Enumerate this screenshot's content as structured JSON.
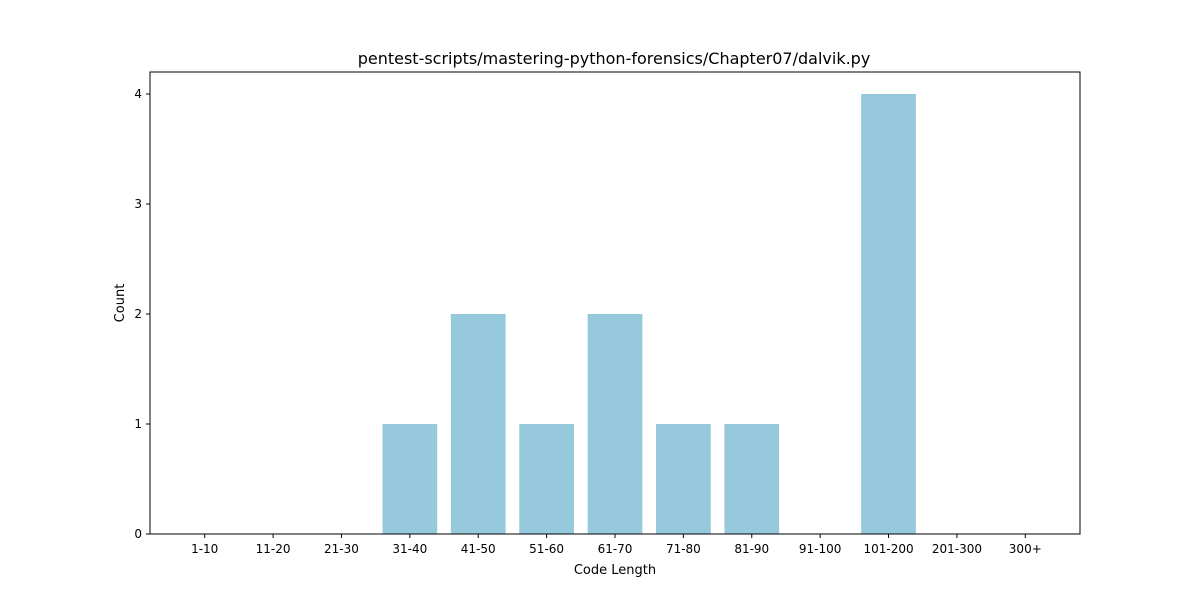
{
  "chart_data": {
    "type": "bar",
    "title": "pentest-scripts/mastering-python-forensics/Chapter07/dalvik.py",
    "xlabel": "Code Length",
    "ylabel": "Count",
    "categories": [
      "1-10",
      "11-20",
      "21-30",
      "31-40",
      "41-50",
      "51-60",
      "61-70",
      "71-80",
      "81-90",
      "91-100",
      "101-200",
      "201-300",
      "300+"
    ],
    "values": [
      0,
      0,
      0,
      1,
      2,
      1,
      2,
      1,
      1,
      0,
      4,
      0,
      0
    ],
    "ylim": [
      0,
      4.2
    ],
    "yticks": [
      0,
      1,
      2,
      3,
      4
    ],
    "grid": false,
    "legend": "none",
    "bar_color": "#96c9dc"
  }
}
